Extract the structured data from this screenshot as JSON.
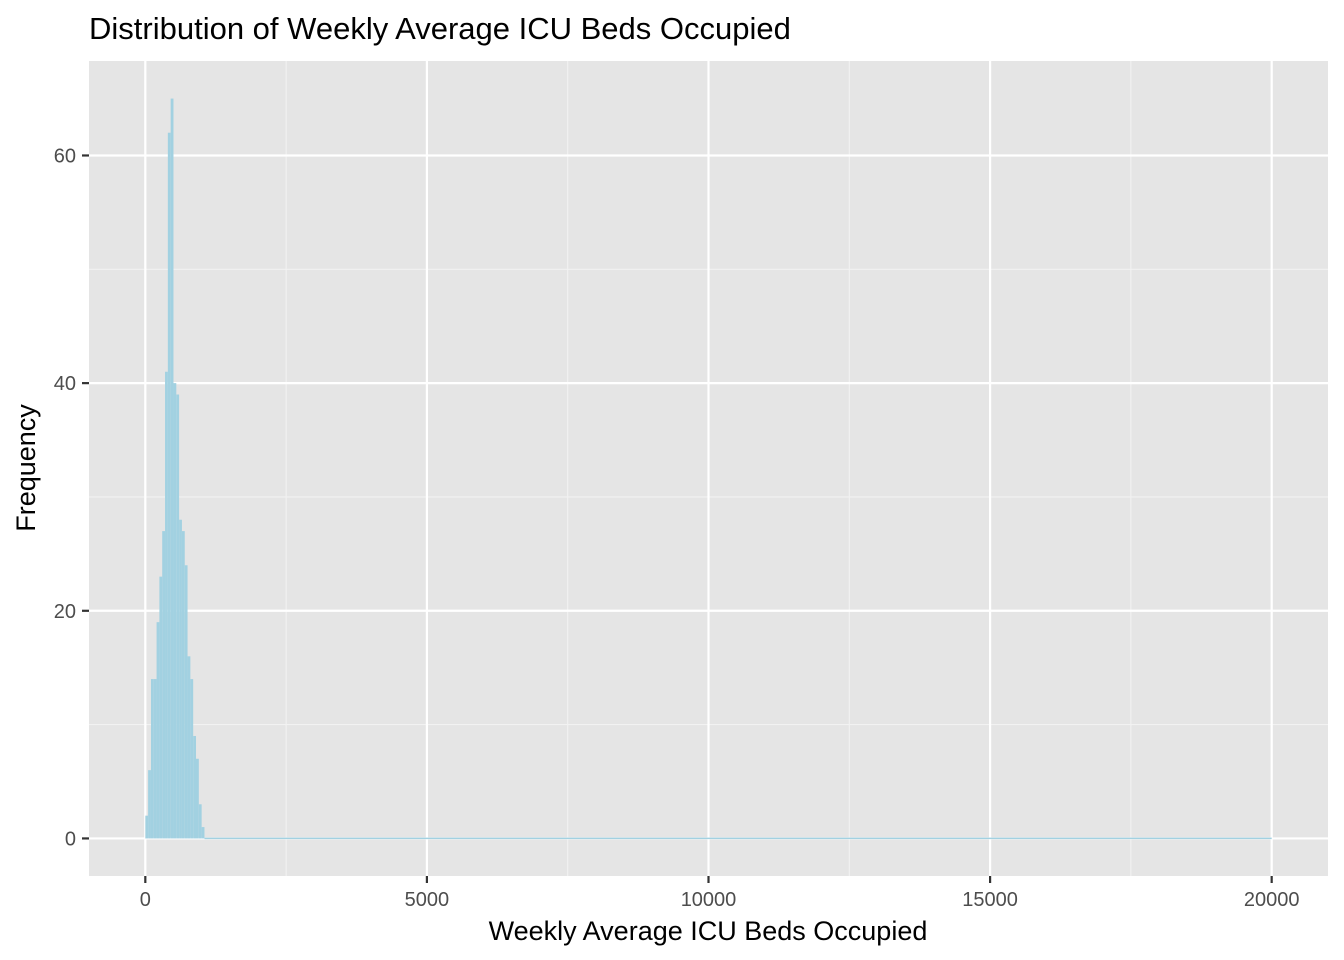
{
  "chart_data": {
    "type": "bar",
    "title": "Distribution of Weekly Average ICU Beds Occupied",
    "xlabel": "Weekly Average ICU Beds Occupied",
    "ylabel": "Frequency",
    "xlim": [
      -1000,
      21000
    ],
    "ylim": [
      -3.3,
      68.3
    ],
    "x_ticks": [
      0,
      5000,
      10000,
      15000,
      20000
    ],
    "x_tick_labels": [
      "0",
      "5000",
      "10000",
      "15000",
      "20000"
    ],
    "y_ticks": [
      0,
      20,
      40,
      60
    ],
    "y_tick_labels": [
      "0",
      "20",
      "40",
      "60"
    ],
    "grid": true,
    "legend": "none",
    "bin_width": 50,
    "bins": {
      "x_start": [
        0,
        50,
        100,
        150,
        200,
        250,
        300,
        350,
        400,
        450,
        500,
        550,
        600,
        650,
        700,
        750,
        800,
        850,
        900,
        950,
        1000,
        1050
      ],
      "counts": [
        2,
        6,
        14,
        14,
        19,
        23,
        27,
        41,
        62,
        65,
        40,
        39,
        28,
        27,
        24,
        16,
        14,
        9,
        7,
        3,
        1,
        0
      ]
    },
    "x_max": 20000,
    "colors": {
      "bar_fill": "#a2d1e1",
      "panel_background": "#e5e5e5",
      "grid_major": "#ffffff",
      "grid_minor": "#f2f2f2"
    }
  }
}
